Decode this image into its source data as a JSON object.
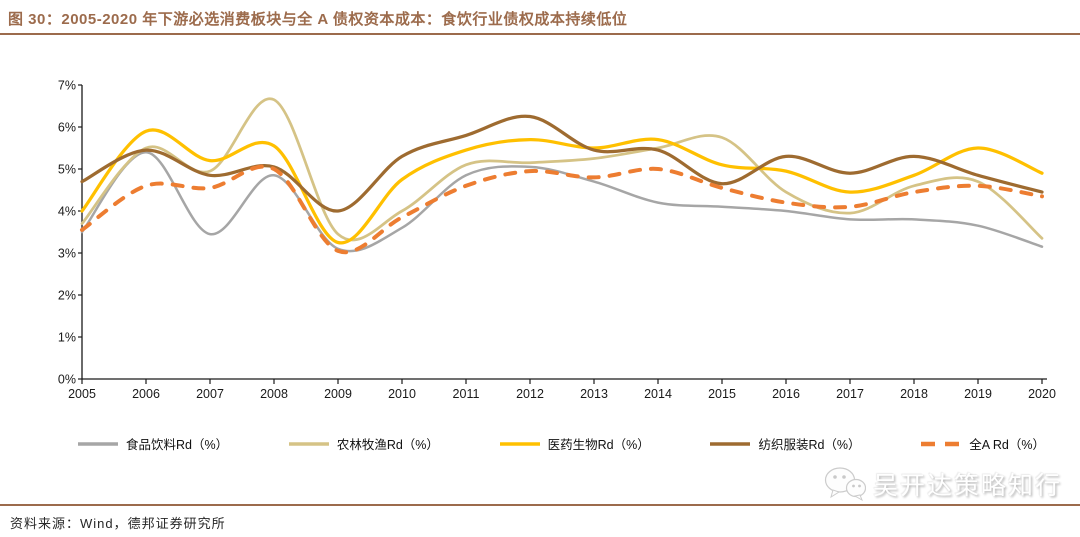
{
  "title": "图 30：2005-2020 年下游必选消费板块与全 A 债权资本成本：食饮行业债权成本持续低位",
  "source": "资料来源：Wind，德邦证券研究所",
  "watermark": {
    "text": "吴开达策略知行",
    "icon": "wechat-icon"
  },
  "colors": {
    "accent_brown": "#9C6B4C",
    "axis": "#1a1a1a",
    "background": "#ffffff"
  },
  "chart_data": {
    "type": "line",
    "title": "图 30：2005-2020 年下游必选消费板块与全 A 债权资本成本：食饮行业债权成本持续低位",
    "x": [
      2005,
      2006,
      2007,
      2008,
      2009,
      2010,
      2011,
      2012,
      2013,
      2014,
      2015,
      2016,
      2017,
      2018,
      2019,
      2020
    ],
    "xlabel": "",
    "ylabel": "",
    "ylim": [
      0,
      7
    ],
    "yticks": [
      "0%",
      "1%",
      "2%",
      "3%",
      "4%",
      "5%",
      "6%",
      "7%"
    ],
    "grid": false,
    "smooth": true,
    "legend_position": "bottom",
    "series": [
      {
        "name": "食品饮料Rd（%）",
        "color": "#A6A6A6",
        "style": "solid",
        "values": [
          3.5,
          5.4,
          3.45,
          4.85,
          3.1,
          3.6,
          4.85,
          5.05,
          4.7,
          4.2,
          4.1,
          4.0,
          3.8,
          3.8,
          3.65,
          3.15
        ]
      },
      {
        "name": "农林牧渔Rd（%）",
        "color": "#D5C386",
        "style": "solid",
        "values": [
          3.7,
          5.5,
          4.95,
          6.65,
          3.45,
          4.0,
          5.1,
          5.15,
          5.25,
          5.5,
          5.75,
          4.45,
          3.95,
          4.6,
          4.7,
          3.35
        ]
      },
      {
        "name": "医药生物Rd（%）",
        "color": "#FFC000",
        "style": "solid",
        "values": [
          4.0,
          5.9,
          5.2,
          5.55,
          3.25,
          4.75,
          5.45,
          5.7,
          5.5,
          5.7,
          5.1,
          4.95,
          4.45,
          4.85,
          5.5,
          4.9
        ]
      },
      {
        "name": "纺织服装Rd（%）",
        "color": "#9E6B30",
        "style": "solid",
        "values": [
          4.7,
          5.45,
          4.85,
          5.05,
          4.0,
          5.3,
          5.8,
          6.25,
          5.45,
          5.45,
          4.65,
          5.3,
          4.9,
          5.3,
          4.85,
          4.45
        ]
      },
      {
        "name": "全A Rd（%）",
        "color": "#ED7D31",
        "style": "dashed",
        "values": [
          3.55,
          4.6,
          4.55,
          5.0,
          3.05,
          3.85,
          4.6,
          4.95,
          4.8,
          5.0,
          4.55,
          4.2,
          4.1,
          4.45,
          4.6,
          4.35
        ]
      }
    ]
  }
}
